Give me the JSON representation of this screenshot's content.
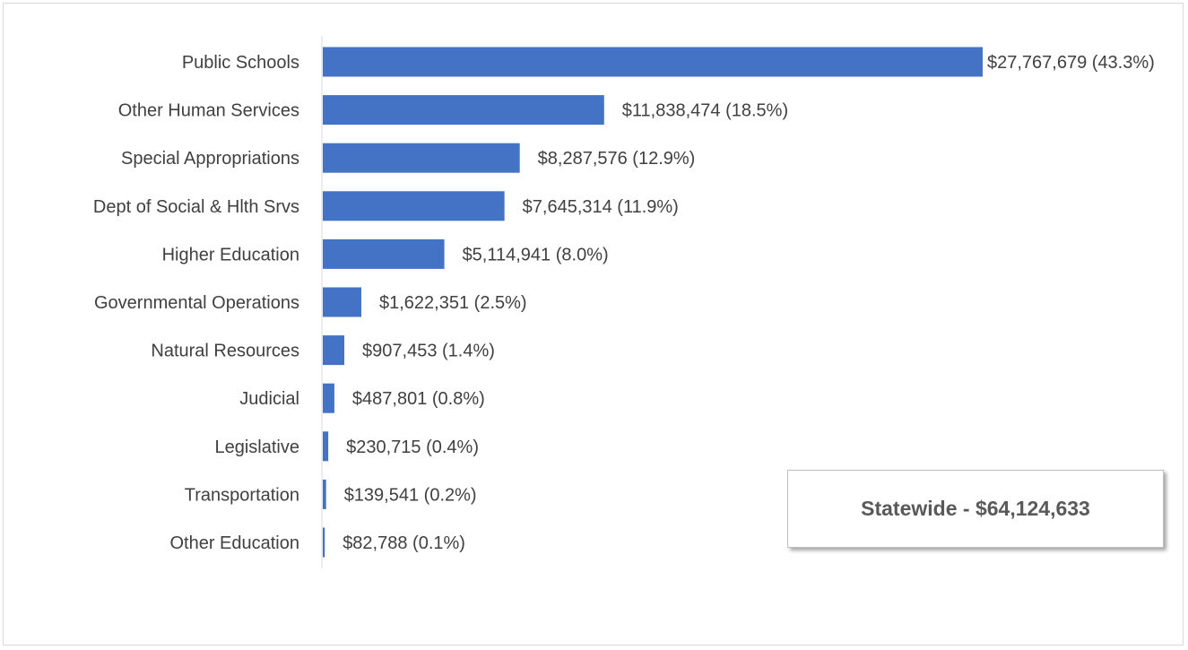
{
  "chart_data": {
    "type": "bar",
    "orientation": "horizontal",
    "categories": [
      "Public Schools",
      "Other Human Services",
      "Special Appropriations",
      "Dept of Social & Hlth Srvs",
      "Higher Education",
      "Governmental Operations",
      "Natural Resources",
      "Judicial",
      "Legislative",
      "Transportation",
      "Other Education"
    ],
    "values": [
      27767679,
      11838474,
      8287576,
      7645314,
      5114941,
      1622351,
      907453,
      487801,
      230715,
      139541,
      82788
    ],
    "data_labels": [
      "$27,767,679 (43.3%)",
      "$11,838,474 (18.5%)",
      "$8,287,576 (12.9%)",
      "$7,645,314 (11.9%)",
      "$5,114,941 (8.0%)",
      "$1,622,351 (2.5%)",
      "$907,453 (1.4%)",
      "$487,801 (0.8%)",
      "$230,715 (0.4%)",
      "$139,541 (0.2%)",
      "$82,788 (0.1%)"
    ],
    "title": "",
    "xlabel": "",
    "ylabel": "",
    "xlim": [
      0,
      27767679
    ],
    "grid": false,
    "legend": "none",
    "bar_color": "#4472c4"
  },
  "total_box": {
    "text": "Statewide - $64,124,633"
  }
}
